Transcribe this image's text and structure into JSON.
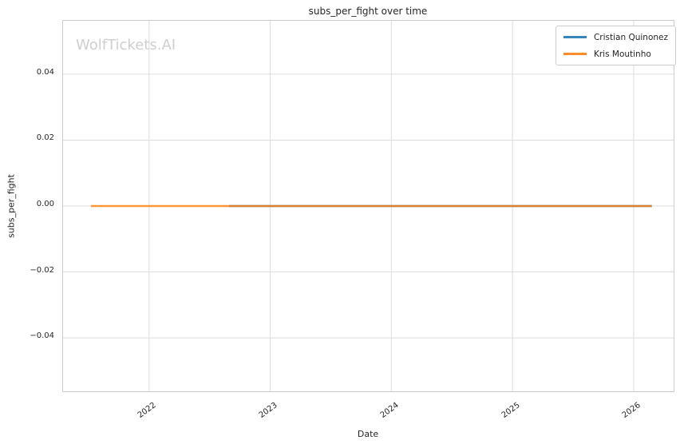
{
  "title": "subs_per_fight over time",
  "watermark": "WolfTickets.AI",
  "axes": {
    "xlabel": "Date",
    "ylabel": "subs_per_fight"
  },
  "legend": {
    "position": "upper right",
    "items": [
      {
        "label": "Cristian Quinonez",
        "color": "#1f77b4"
      },
      {
        "label": "Kris Moutinho",
        "color": "#ff7f0e"
      }
    ]
  },
  "chart_data": {
    "type": "line",
    "title": "subs_per_fight over time",
    "xlabel": "Date",
    "ylabel": "subs_per_fight",
    "x_domain": [
      2021.29,
      2026.33
    ],
    "y_domain": [
      -0.0562,
      0.0562
    ],
    "x_ticks": [
      2022,
      2023,
      2024,
      2025,
      2026
    ],
    "y_ticks": [
      -0.04,
      -0.02,
      0.0,
      0.02,
      0.04
    ],
    "grid": true,
    "grid_color": "#dcdcdc",
    "legend_position": "upper right",
    "series": [
      {
        "name": "Cristian Quinonez",
        "color": "#1f77b4",
        "opacity": 0.8,
        "x": [
          2022.66,
          2026.15
        ],
        "y": [
          0.0,
          0.0
        ]
      },
      {
        "name": "Kris Moutinho",
        "color": "#ff7f0e",
        "opacity": 0.8,
        "x": [
          2021.52,
          2026.15
        ],
        "y": [
          0.0,
          0.0
        ]
      }
    ]
  }
}
